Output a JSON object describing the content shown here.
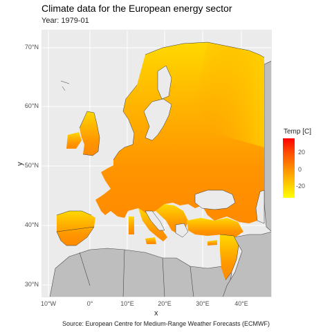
{
  "title": "Climate data for the European energy sector",
  "subtitle": "Year: 1979-01",
  "axes": {
    "x_title": "x",
    "y_title": "y",
    "x_ticks": [
      "10°W",
      "0°",
      "10°E",
      "20°E",
      "30°E",
      "40°E"
    ],
    "y_ticks": [
      "70°N",
      "60°N",
      "50°N",
      "40°N",
      "30°N"
    ]
  },
  "legend": {
    "title": "Temp [C]",
    "ticks": [
      "20",
      "0",
      "-20"
    ],
    "colors": [
      "#ff0000",
      "#ff9800",
      "#ffff00"
    ]
  },
  "caption": "Source: European Centre for Medium-Range Weather Forecasts (ECMWF)",
  "colors": {
    "panel_bg": "#ebebeb",
    "grid": "#ffffff",
    "land_outside": "#bebebe",
    "data_fill": "#ff9a00",
    "data_north": "#ffd000"
  }
}
